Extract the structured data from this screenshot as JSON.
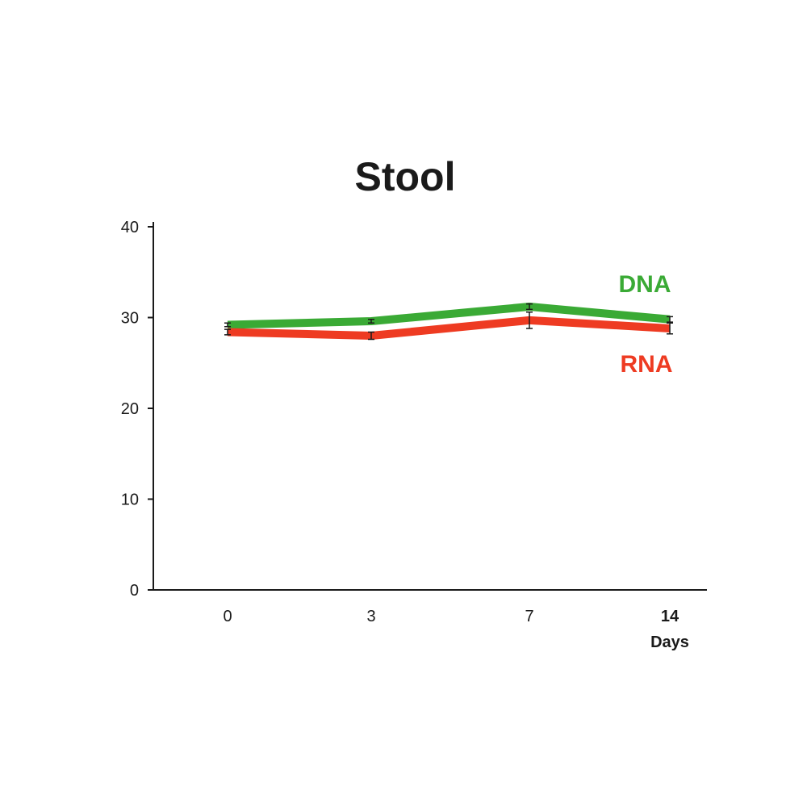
{
  "chart_data": {
    "type": "line",
    "title": "Stool",
    "xlabel": "Days",
    "ylabel": "",
    "x": [
      0,
      3,
      7,
      14
    ],
    "x_tick_labels": [
      "0",
      "3",
      "7",
      "14"
    ],
    "y_ticks": [
      0,
      10,
      20,
      30,
      40
    ],
    "y_tick_labels": [
      "0",
      "10",
      "20",
      "30",
      "40"
    ],
    "ylim": [
      0,
      40
    ],
    "grid": false,
    "legend": "inline-right",
    "series": [
      {
        "name": "DNA",
        "color": "#3aaa35",
        "values": [
          29.2,
          29.6,
          31.2,
          29.8
        ],
        "error": [
          0.2,
          0.2,
          0.3,
          0.3
        ]
      },
      {
        "name": "RNA",
        "color": "#ee3b22",
        "values": [
          28.4,
          28.0,
          29.7,
          28.8
        ],
        "error": [
          0.3,
          0.4,
          0.9,
          0.6
        ]
      }
    ]
  }
}
